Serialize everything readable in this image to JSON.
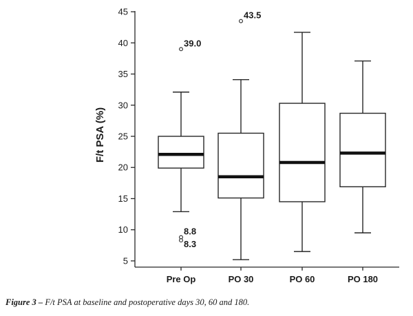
{
  "caption": {
    "lead": "Figure 3 –",
    "text": " F/t PSA at baseline and postoperative days 30, 60 and 180."
  },
  "chart_data": {
    "type": "box",
    "ylabel": "F/t PSA (%)",
    "xlabel": "",
    "ylim": [
      4,
      46
    ],
    "yticks": [
      5,
      10,
      15,
      20,
      25,
      30,
      35,
      40,
      45
    ],
    "grid": false,
    "categories": [
      "Pre Op",
      "PO 30",
      "PO 60",
      "PO 180"
    ],
    "boxes": [
      {
        "category": "Pre Op",
        "whisker_low": 12.9,
        "q1": 19.9,
        "median": 22.1,
        "q3": 25.0,
        "whisker_high": 32.1,
        "outliers": [
          {
            "value": 39.0,
            "label": "39.0"
          },
          {
            "value": 8.8,
            "label": "8.8"
          },
          {
            "value": 8.3,
            "label": "8.3"
          }
        ]
      },
      {
        "category": "PO 30",
        "whisker_low": 5.2,
        "q1": 15.1,
        "median": 18.5,
        "q3": 25.5,
        "whisker_high": 34.1,
        "outliers": [
          {
            "value": 43.5,
            "label": "43.5"
          }
        ]
      },
      {
        "category": "PO 60",
        "whisker_low": 6.5,
        "q1": 14.5,
        "median": 20.8,
        "q3": 30.3,
        "whisker_high": 41.7,
        "outliers": []
      },
      {
        "category": "PO 180",
        "whisker_low": 9.5,
        "q1": 16.9,
        "median": 22.3,
        "q3": 28.7,
        "whisker_high": 37.1,
        "outliers": []
      }
    ]
  }
}
